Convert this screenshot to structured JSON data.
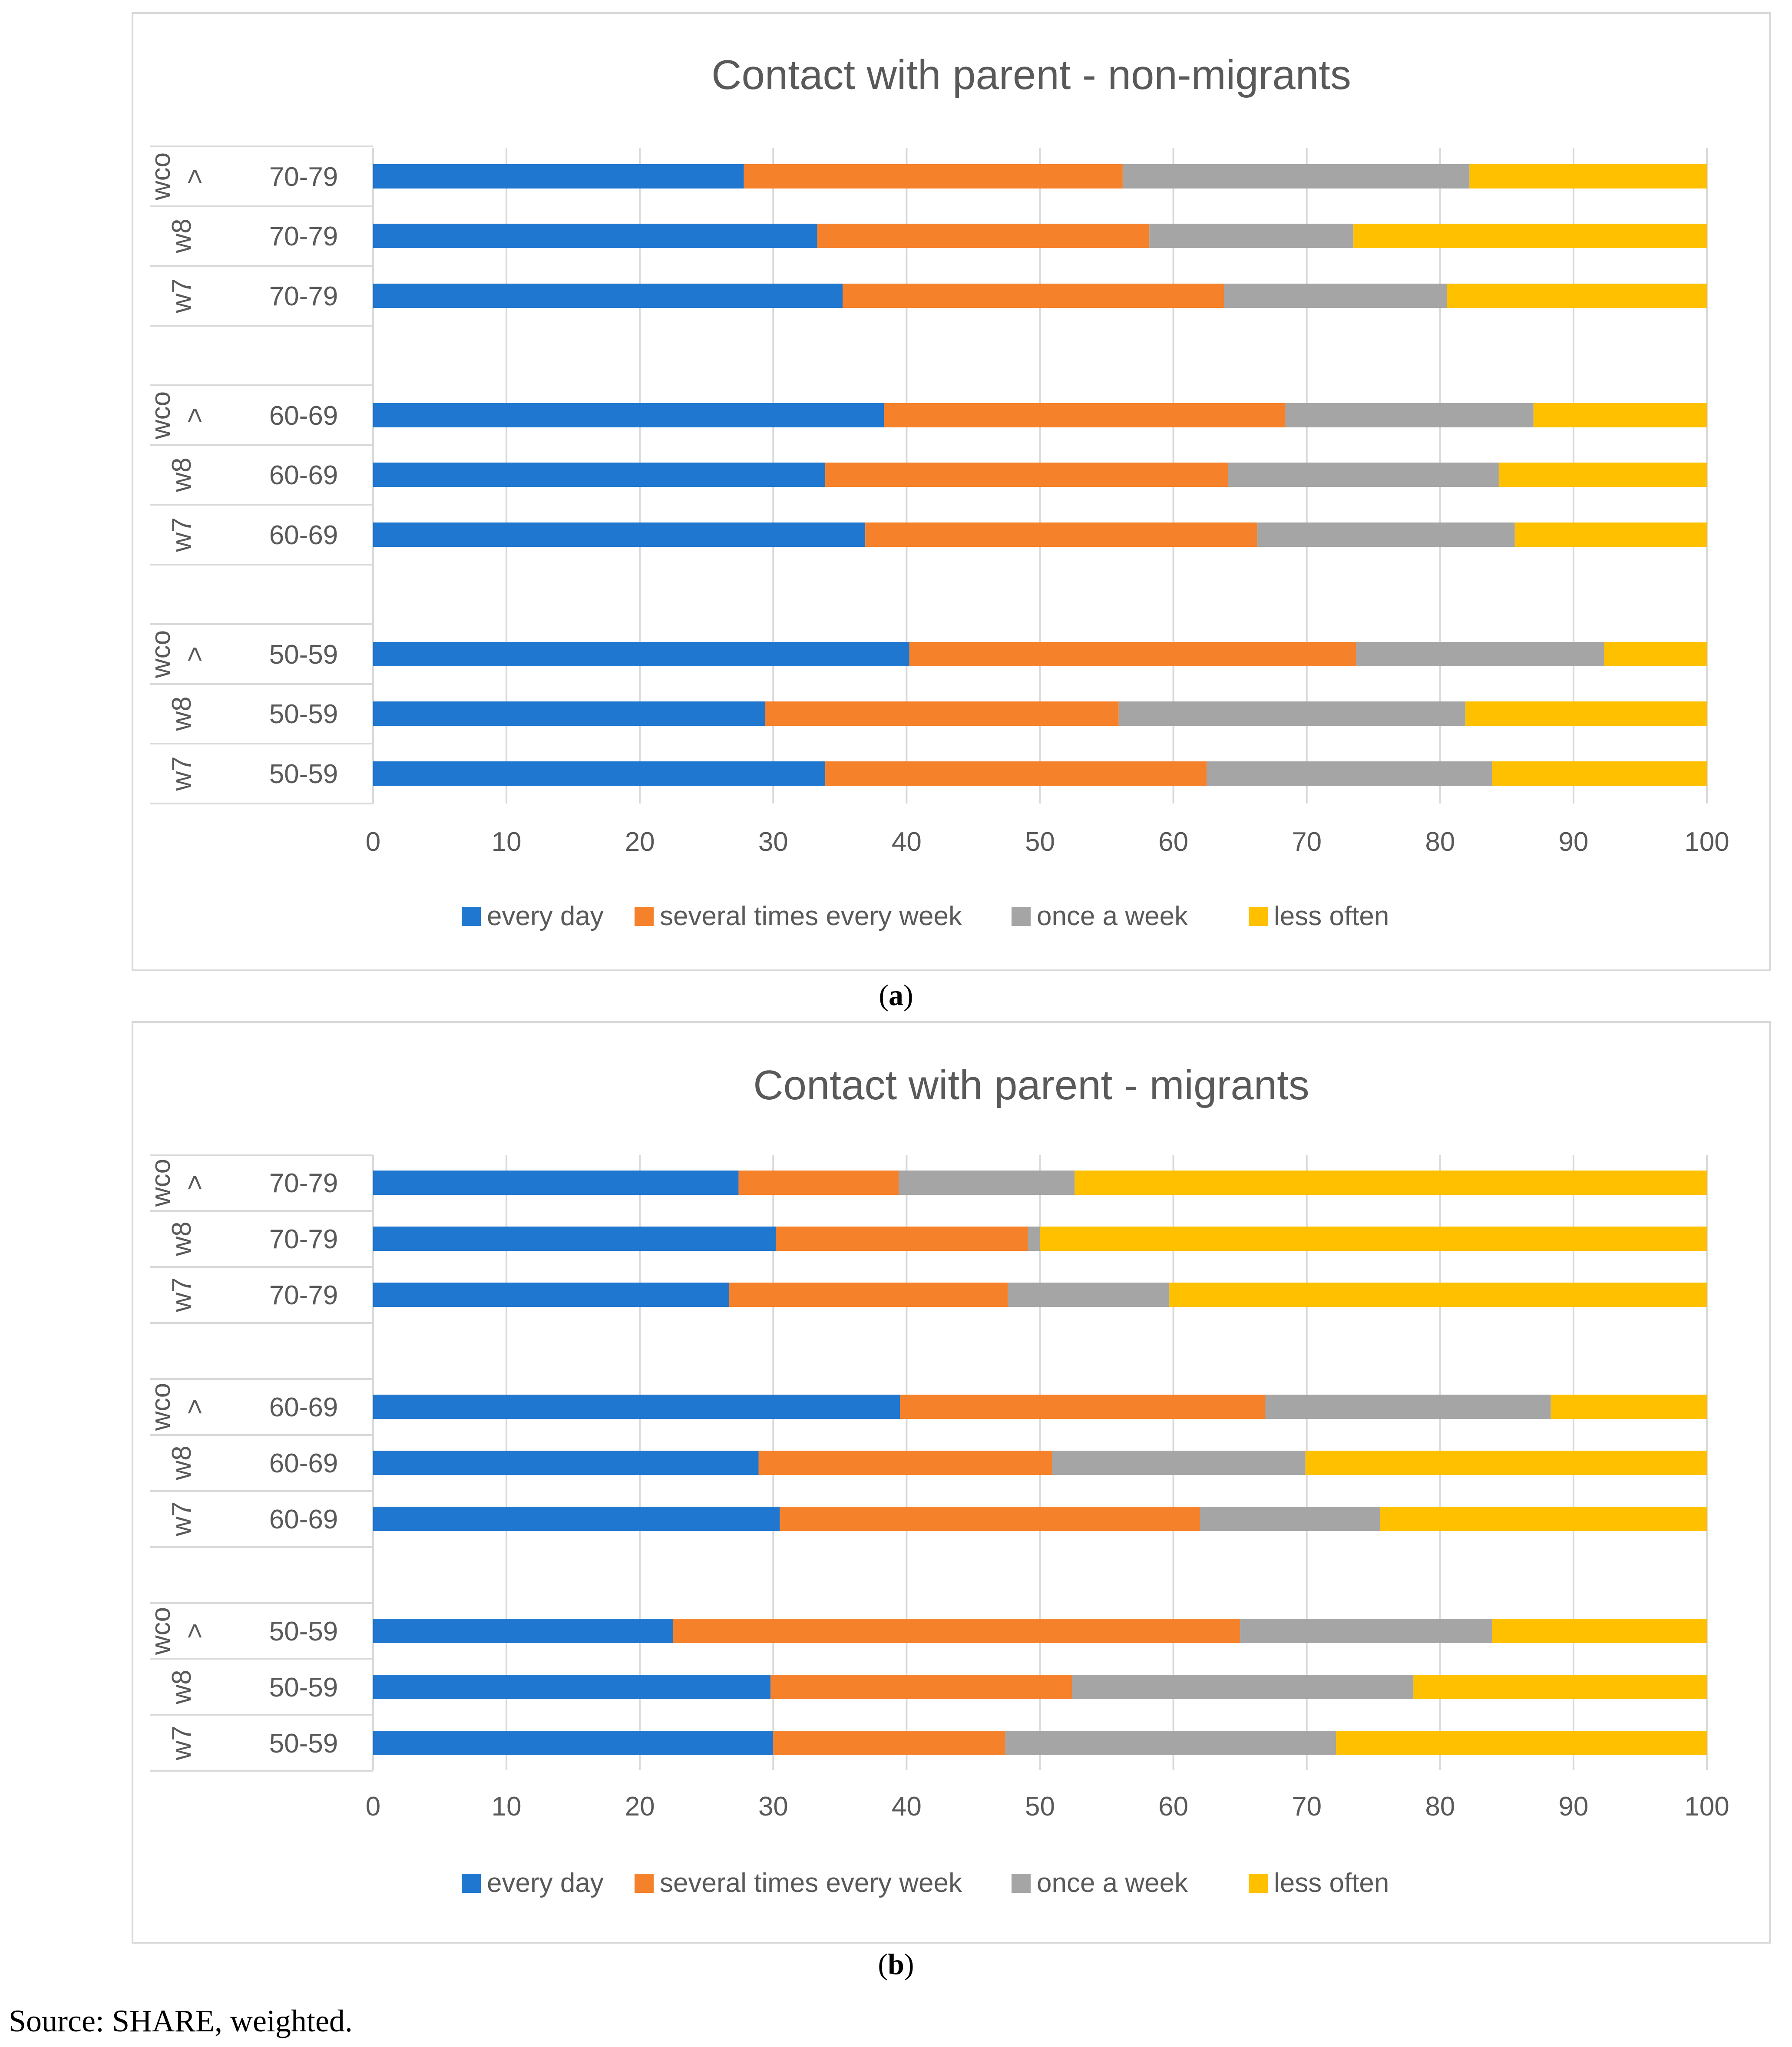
{
  "chart_data": [
    {
      "type": "bar",
      "orientation": "horizontal-stacked",
      "title": "Contact with parent - non-migrants",
      "panel": "a",
      "xlim": [
        0,
        100
      ],
      "xticks": [
        "0",
        "10",
        "20",
        "30",
        "40",
        "50",
        "60",
        "70",
        "80",
        "90",
        "100"
      ],
      "legend_position": "bottom",
      "categories": [
        {
          "wave": "wco\n>",
          "wave_label": "wco",
          "wave_mark": ">",
          "age": "70-79"
        },
        {
          "wave": "w8",
          "age": "70-79"
        },
        {
          "wave": "w7",
          "age": "70-79"
        },
        {
          "wave": "wco\n>",
          "wave_label": "wco",
          "wave_mark": ">",
          "age": "60-69"
        },
        {
          "wave": "w8",
          "age": "60-69"
        },
        {
          "wave": "w7",
          "age": "60-69"
        },
        {
          "wave": "wco\n>",
          "wave_label": "wco",
          "wave_mark": ">",
          "age": "50-59"
        },
        {
          "wave": "w8",
          "age": "50-59"
        },
        {
          "wave": "w7",
          "age": "50-59"
        }
      ],
      "series": [
        {
          "name": "every day",
          "color": "#1f77d0",
          "values": [
            27.8,
            33.3,
            35.2,
            38.3,
            33.9,
            36.9,
            40.2,
            29.4,
            33.9
          ]
        },
        {
          "name": "several times every week",
          "color": "#f5812a",
          "values": [
            28.4,
            24.9,
            28.6,
            30.1,
            30.2,
            29.4,
            33.5,
            26.5,
            28.6
          ]
        },
        {
          "name": "once a week",
          "color": "#a5a5a5",
          "values": [
            26.0,
            15.3,
            16.7,
            18.6,
            20.3,
            19.3,
            18.6,
            26.0,
            21.4
          ]
        },
        {
          "name": "less often",
          "color": "#ffc000",
          "values": [
            17.8,
            26.5,
            19.5,
            13.0,
            15.6,
            14.4,
            7.7,
            18.1,
            16.1
          ]
        }
      ]
    },
    {
      "type": "bar",
      "orientation": "horizontal-stacked",
      "title": "Contact with parent - migrants",
      "panel": "b",
      "xlim": [
        0,
        100
      ],
      "xticks": [
        "0",
        "10",
        "20",
        "30",
        "40",
        "50",
        "60",
        "70",
        "80",
        "90",
        "100"
      ],
      "legend_position": "bottom",
      "categories": [
        {
          "wave": "wco\n>",
          "wave_label": "wco",
          "wave_mark": ">",
          "age": "70-79"
        },
        {
          "wave": "w8",
          "age": "70-79"
        },
        {
          "wave": "w7",
          "age": "70-79"
        },
        {
          "wave": "wco\n>",
          "wave_label": "wco",
          "wave_mark": ">",
          "age": "60-69"
        },
        {
          "wave": "w8",
          "age": "60-69"
        },
        {
          "wave": "w7",
          "age": "60-69"
        },
        {
          "wave": "wco\n>",
          "wave_label": "wco",
          "wave_mark": ">",
          "age": "50-59"
        },
        {
          "wave": "w8",
          "age": "50-59"
        },
        {
          "wave": "w7",
          "age": "50-59"
        }
      ],
      "series": [
        {
          "name": "every day",
          "color": "#1f77d0",
          "values": [
            27.4,
            30.2,
            26.7,
            39.5,
            28.9,
            30.5,
            22.5,
            29.8,
            30.0
          ]
        },
        {
          "name": "several times every week",
          "color": "#f5812a",
          "values": [
            12.0,
            18.9,
            20.9,
            27.4,
            22.0,
            31.5,
            42.5,
            22.6,
            17.4
          ]
        },
        {
          "name": "once a week",
          "color": "#a5a5a5",
          "values": [
            13.2,
            0.9,
            12.1,
            21.4,
            19.0,
            13.5,
            18.9,
            25.6,
            24.8
          ]
        },
        {
          "name": "less often",
          "color": "#ffc000",
          "values": [
            47.4,
            50.0,
            40.3,
            11.7,
            30.1,
            24.5,
            16.1,
            22.0,
            27.8
          ]
        }
      ]
    }
  ],
  "captions": {
    "a": "a",
    "b": "b"
  },
  "source_note": "Source: SHARE, weighted."
}
